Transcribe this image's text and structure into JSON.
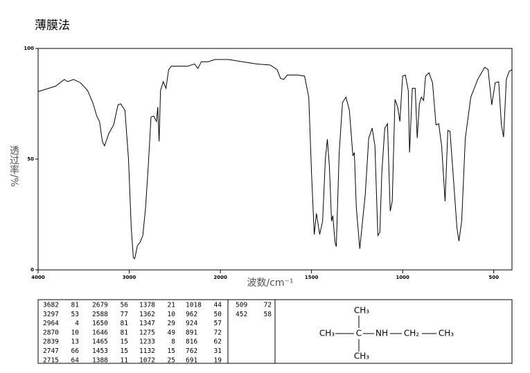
{
  "chart_data": {
    "type": "line",
    "title": "薄膜法",
    "x_label": "波数/cm⁻¹",
    "y_label": "透过率/%",
    "color": "#000000",
    "x": [
      4000,
      3806,
      3713,
      3674,
      3612,
      3535,
      3457,
      3395,
      3357,
      3326,
      3295,
      3271,
      3225,
      3171,
      3124,
      3093,
      3047,
      3008,
      2978,
      2955,
      2940,
      2910,
      2881,
      2851,
      2821,
      2791,
      2761,
      2731,
      2701,
      2687,
      2672,
      2657,
      2627,
      2597,
      2567,
      2537,
      2433,
      2358,
      2284,
      2246,
      2209,
      2134,
      2060,
      1955,
      1879,
      1803,
      1727,
      1689,
      1670,
      1652,
      1633,
      1576,
      1538,
      1515,
      1500,
      1485,
      1473,
      1455,
      1439,
      1424,
      1413,
      1402,
      1390,
      1383,
      1371,
      1364,
      1348,
      1330,
      1311,
      1292,
      1273,
      1265,
      1254,
      1235,
      1220,
      1205,
      1186,
      1167,
      1152,
      1136,
      1125,
      1114,
      1098,
      1083,
      1068,
      1057,
      1042,
      1027,
      1015,
      1000,
      985,
      969,
      962,
      947,
      931,
      920,
      908,
      897,
      885,
      874,
      855,
      836,
      817,
      802,
      786,
      767,
      752,
      740,
      718,
      702,
      691,
      676,
      656,
      626,
      588,
      550,
      531,
      511,
      492,
      473,
      458,
      446,
      431,
      416,
      400
    ],
    "values": [
      80.5,
      83,
      86,
      85,
      86,
      84.5,
      81,
      75,
      69.5,
      67,
      58,
      56,
      61.5,
      65.5,
      74.5,
      75,
      72,
      50,
      19,
      5.5,
      5,
      11,
      12.5,
      15.5,
      28,
      47,
      69,
      69.5,
      67,
      73.5,
      58,
      81,
      85,
      82,
      90.5,
      92,
      92,
      92,
      93,
      91,
      94,
      94,
      95,
      95,
      94,
      93,
      92.5,
      90.5,
      86.5,
      86,
      88,
      88,
      87.5,
      78,
      44,
      16,
      25.5,
      16,
      22,
      50,
      59,
      47,
      22,
      24.5,
      12.5,
      10.5,
      53,
      75.5,
      78,
      72,
      51.5,
      53,
      28,
      9.5,
      22,
      34,
      59.5,
      64,
      56,
      15.5,
      17,
      44,
      64,
      66,
      26.5,
      31,
      77,
      73.5,
      67,
      87.5,
      88,
      81,
      53,
      82,
      82,
      59.5,
      75,
      78,
      76.5,
      87.5,
      89,
      84.5,
      65.5,
      66,
      56,
      31,
      63,
      62.5,
      37.5,
      19,
      13,
      22,
      59.5,
      78,
      86,
      91.5,
      90.5,
      74.5,
      84.5,
      85,
      65.5,
      60,
      86,
      89.5,
      90.5
    ],
    "xlim": [
      4000,
      400
    ],
    "xticks": [
      4000,
      3000,
      2000,
      1500,
      1000,
      500
    ],
    "ylim": [
      0,
      100
    ],
    "yticks": [
      0,
      50,
      100
    ]
  },
  "peak_table": {
    "columns": [
      [
        [
          3682,
          81
        ],
        [
          3297,
          53
        ],
        [
          2964,
          4
        ],
        [
          2870,
          10
        ],
        [
          2839,
          13
        ],
        [
          2747,
          66
        ],
        [
          2715,
          64
        ]
      ],
      [
        [
          2679,
          56
        ],
        [
          2588,
          77
        ],
        [
          1650,
          81
        ],
        [
          1646,
          81
        ],
        [
          1465,
          15
        ],
        [
          1453,
          15
        ],
        [
          1388,
          11
        ]
      ],
      [
        [
          1378,
          21
        ],
        [
          1362,
          10
        ],
        [
          1347,
          29
        ],
        [
          1275,
          49
        ],
        [
          1233,
          8
        ],
        [
          1132,
          15
        ],
        [
          1072,
          25
        ]
      ],
      [
        [
          1018,
          44
        ],
        [
          962,
          50
        ],
        [
          924,
          57
        ],
        [
          891,
          72
        ],
        [
          816,
          62
        ],
        [
          762,
          31
        ],
        [
          691,
          19
        ]
      ],
      [
        [
          509,
          72
        ],
        [
          452,
          58
        ]
      ]
    ]
  },
  "structure": {
    "top": "CH₃",
    "left": "CH₃",
    "center": "C",
    "amine": "NH",
    "methylene": "CH₂",
    "right": "CH₃",
    "bottom": "CH₃"
  }
}
